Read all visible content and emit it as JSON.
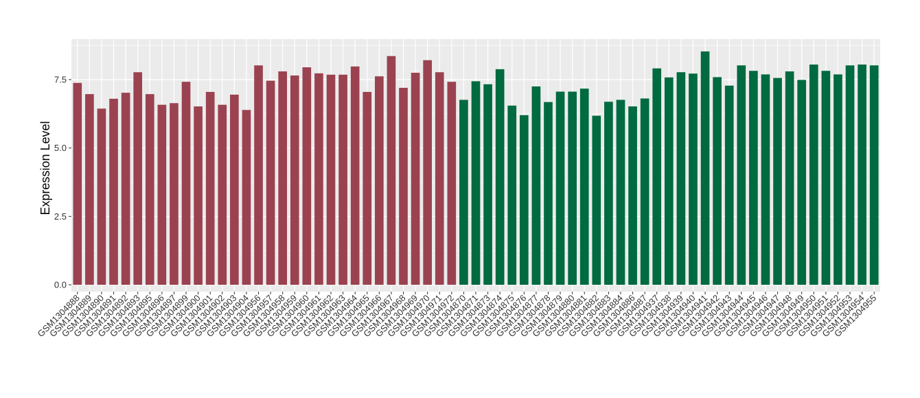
{
  "chart_data": {
    "type": "bar",
    "title": "",
    "xlabel": "",
    "ylabel": "Expression Level",
    "ylim": [
      0,
      8.96
    ],
    "yticks": [
      "0.0",
      "2.5",
      "5.0",
      "7.5"
    ],
    "ytick_values": [
      0,
      2.5,
      5.0,
      7.5
    ],
    "grid": true,
    "legend": "none",
    "panel_background": "#ebebeb",
    "grid_color": "#ffffff",
    "series_colors": [
      "#9b4250",
      "#006a40"
    ],
    "categories": [
      "GSM1304888",
      "GSM1304889",
      "GSM1304890",
      "GSM1304891",
      "GSM1304892",
      "GSM1304893",
      "GSM1304895",
      "GSM1304896",
      "GSM1304897",
      "GSM1304899",
      "GSM1304900",
      "GSM1304901",
      "GSM1304902",
      "GSM1304903",
      "GSM1304904",
      "GSM1304956",
      "GSM1304957",
      "GSM1304958",
      "GSM1304959",
      "GSM1304960",
      "GSM1304961",
      "GSM1304962",
      "GSM1304963",
      "GSM1304964",
      "GSM1304965",
      "GSM1304966",
      "GSM1304967",
      "GSM1304968",
      "GSM1304969",
      "GSM1304970",
      "GSM1304971",
      "GSM1304972",
      "GSM1304870",
      "GSM1304871",
      "GSM1304873",
      "GSM1304874",
      "GSM1304875",
      "GSM1304876",
      "GSM1304877",
      "GSM1304878",
      "GSM1304879",
      "GSM1304880",
      "GSM1304881",
      "GSM1304882",
      "GSM1304883",
      "GSM1304884",
      "GSM1304886",
      "GSM1304887",
      "GSM1304937",
      "GSM1304938",
      "GSM1304939",
      "GSM1304940",
      "GSM1304941",
      "GSM1304942",
      "GSM1304943",
      "GSM1304944",
      "GSM1304945",
      "GSM1304946",
      "GSM1304947",
      "GSM1304948",
      "GSM1304949",
      "GSM1304950",
      "GSM1304951",
      "GSM1304952",
      "GSM1304953",
      "GSM1304954",
      "GSM1304955"
    ],
    "values": [
      7.38,
      6.97,
      6.44,
      6.8,
      7.02,
      7.77,
      6.97,
      6.58,
      6.64,
      7.42,
      6.52,
      7.05,
      6.58,
      6.95,
      6.39,
      8.02,
      7.46,
      7.8,
      7.65,
      7.95,
      7.73,
      7.68,
      7.68,
      7.98,
      7.05,
      7.62,
      8.36,
      7.2,
      7.75,
      8.21,
      7.77,
      7.42,
      6.76,
      7.44,
      7.33,
      7.88,
      6.55,
      6.2,
      7.25,
      6.68,
      7.06,
      7.06,
      7.17,
      6.18,
      6.69,
      6.76,
      6.52,
      6.81,
      7.91,
      7.58,
      7.77,
      7.72,
      8.53,
      7.59,
      7.28,
      8.02,
      7.82,
      7.69,
      7.56,
      7.8,
      7.49,
      8.05,
      7.82,
      7.69,
      8.02,
      8.05,
      8.02
    ],
    "groups": [
      0,
      0,
      0,
      0,
      0,
      0,
      0,
      0,
      0,
      0,
      0,
      0,
      0,
      0,
      0,
      0,
      0,
      0,
      0,
      0,
      0,
      0,
      0,
      0,
      0,
      0,
      0,
      0,
      0,
      0,
      0,
      0,
      1,
      1,
      1,
      1,
      1,
      1,
      1,
      1,
      1,
      1,
      1,
      1,
      1,
      1,
      1,
      1,
      1,
      1,
      1,
      1,
      1,
      1,
      1,
      1,
      1,
      1,
      1,
      1,
      1,
      1,
      1,
      1,
      1,
      1,
      1
    ]
  }
}
